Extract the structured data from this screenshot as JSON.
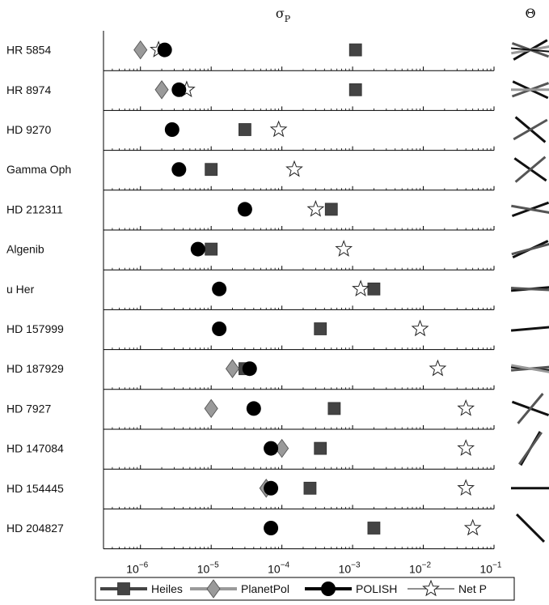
{
  "chart_data": {
    "type": "scatter",
    "x_header": "σ",
    "x_header_sub": "P",
    "theta_header": "Θ",
    "xscale": "log",
    "xlim": [
      3e-07,
      0.1
    ],
    "xtick_values": [
      -6,
      -5,
      -4,
      -3,
      -2,
      -1
    ],
    "xtick_labels": [
      "10",
      "10",
      "10",
      "10",
      "10",
      "10"
    ],
    "xtick_exps": [
      "−6",
      "−5",
      "−4",
      "−3",
      "−2",
      "−1"
    ],
    "categories": [
      "HR 5854",
      "HR 8974",
      "HD 9270",
      "Gamma Oph",
      "HD 212311",
      "Algenib",
      "u Her",
      "HD 157999",
      "HD 187929",
      "HD 7927",
      "HD 147084",
      "HD 154445",
      "HD 204827"
    ],
    "series": [
      {
        "name": "Heiles",
        "marker": "square",
        "color": "#444444",
        "values": [
          0.0011,
          0.0011,
          3e-05,
          1e-05,
          0.0005,
          1e-05,
          0.002,
          0.00035,
          3e-05,
          0.00055,
          0.00035,
          0.00025,
          0.002
        ]
      },
      {
        "name": "PlanetPol",
        "marker": "diamond",
        "color": "#999999",
        "values": [
          1e-06,
          2e-06,
          null,
          null,
          null,
          null,
          null,
          null,
          2e-05,
          1e-05,
          0.0001,
          6e-05,
          null
        ]
      },
      {
        "name": "POLISH",
        "marker": "circle",
        "color": "#000000",
        "values": [
          2.2e-06,
          3.5e-06,
          2.8e-06,
          3.5e-06,
          3e-05,
          6.5e-06,
          1.3e-05,
          1.3e-05,
          3.5e-05,
          4e-05,
          7e-05,
          7e-05,
          7e-05
        ]
      },
      {
        "name": "Net P",
        "marker": "star",
        "color": "#ffffff",
        "values": [
          1.8e-06,
          4.5e-06,
          9e-05,
          0.00015,
          0.0003,
          0.00075,
          0.0013,
          0.009,
          0.016,
          0.04,
          0.04,
          0.04,
          0.05
        ]
      }
    ],
    "theta_angles_deg": [
      [
        -30,
        20,
        -10,
        5
      ],
      [
        25,
        -20,
        0,
        null
      ],
      [
        40,
        -30,
        null,
        null
      ],
      [
        35,
        -40,
        null,
        null
      ],
      [
        -20,
        10,
        null,
        null
      ],
      [
        -25,
        -15,
        null,
        null
      ],
      [
        -5,
        3,
        null,
        null
      ],
      [
        -5,
        null,
        null,
        null
      ],
      [
        5,
        -5,
        10,
        null
      ],
      [
        20,
        -50,
        null,
        null
      ],
      [
        -60,
        -55,
        null,
        null
      ],
      [
        0,
        null,
        null,
        null
      ],
      [
        45,
        null,
        null,
        null
      ]
    ],
    "legend": {
      "position": "bottom-center",
      "entries": [
        "Heiles",
        "PlanetPol",
        "POLISH",
        "Net P"
      ]
    },
    "grid": false
  }
}
